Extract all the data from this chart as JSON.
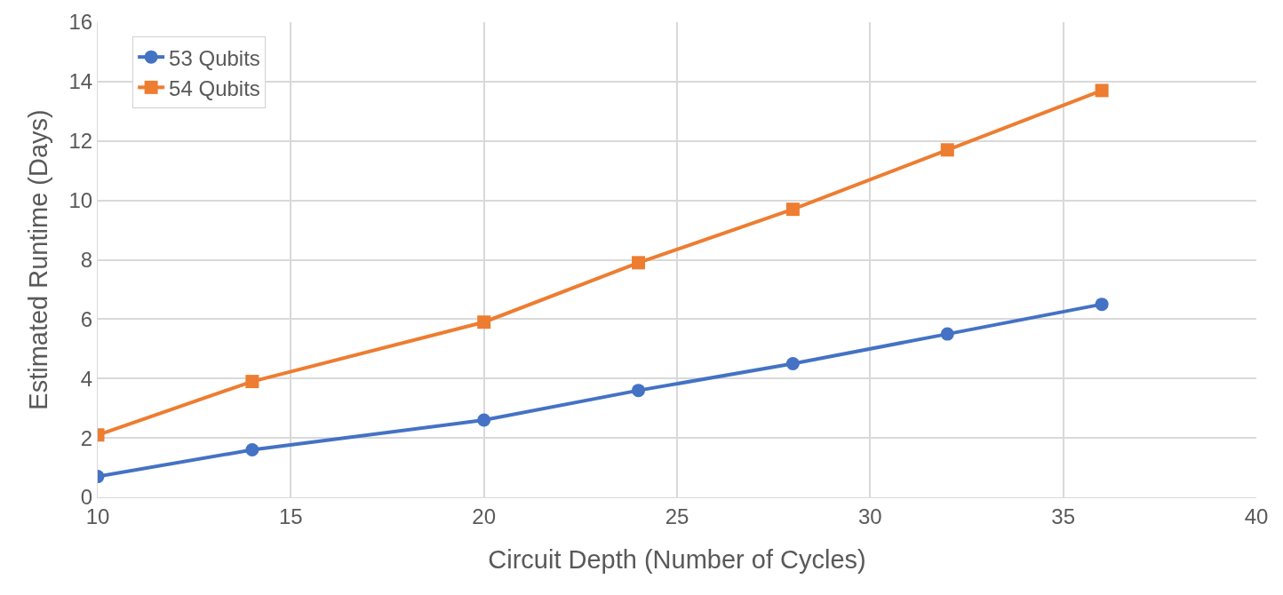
{
  "chart_data": {
    "type": "line",
    "xlabel": "Circuit Depth (Number of Cycles)",
    "ylabel": "Estimated Runtime (Days)",
    "x": [
      10,
      14,
      20,
      24,
      28,
      32,
      36
    ],
    "series": [
      {
        "name": "53 Qubits",
        "color": "#4472c4",
        "marker": "circle",
        "values": [
          0.7,
          1.6,
          2.6,
          3.6,
          4.5,
          5.5,
          6.5
        ]
      },
      {
        "name": "54 Qubits",
        "color": "#ed7d31",
        "marker": "square",
        "values": [
          2.1,
          3.9,
          5.9,
          7.9,
          9.7,
          11.7,
          13.7
        ]
      }
    ],
    "xlim": [
      10,
      40
    ],
    "xticks": [
      10,
      15,
      20,
      25,
      30,
      35,
      40
    ],
    "ylim": [
      0,
      16
    ],
    "yticks": [
      0,
      2,
      4,
      6,
      8,
      10,
      12,
      14,
      16
    ],
    "grid": true,
    "legend": "top left",
    "line_style": "solid"
  }
}
